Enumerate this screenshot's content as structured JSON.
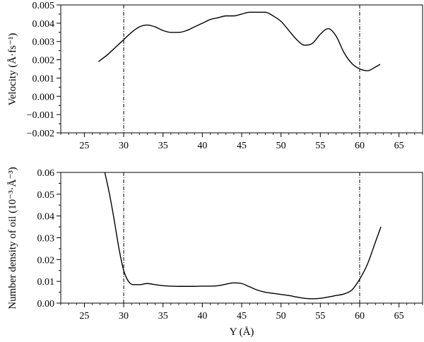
{
  "chart_data": [
    {
      "type": "line",
      "panel": "top",
      "ylabel": "Velocity (Å·fs⁻¹)",
      "xlim": [
        22,
        68
      ],
      "ylim": [
        -0.002,
        0.005
      ],
      "x_ticks": [
        "25",
        "30",
        "35",
        "40",
        "45",
        "50",
        "55",
        "60",
        "65"
      ],
      "y_ticks": [
        "−0.002",
        "−0.001",
        "0.000",
        "0.001",
        "0.002",
        "0.003",
        "0.004",
        "0.005"
      ],
      "reference_lines_x": [
        30,
        60
      ],
      "grid": false,
      "series": [
        {
          "x": [
            26.8,
            28,
            29,
            30,
            31,
            32,
            33,
            34,
            35,
            36,
            37,
            38,
            39,
            40,
            41,
            42,
            43,
            44,
            45,
            46,
            47,
            48,
            49,
            50,
            51,
            52,
            53,
            54,
            55,
            56,
            57,
            58,
            59,
            60,
            61,
            62,
            62.6
          ],
          "y": [
            0.0019,
            0.0023,
            0.0027,
            0.0031,
            0.0035,
            0.0038,
            0.0039,
            0.0038,
            0.0036,
            0.0035,
            0.0035,
            0.0036,
            0.0038,
            0.004,
            0.0042,
            0.0043,
            0.0044,
            0.0044,
            0.0045,
            0.0046,
            0.0046,
            0.0046,
            0.0044,
            0.0041,
            0.0036,
            0.0031,
            0.0028,
            0.0029,
            0.0034,
            0.0037,
            0.0033,
            0.0024,
            0.0018,
            0.0015,
            0.0014,
            0.0016,
            0.00175
          ]
        }
      ]
    },
    {
      "type": "line",
      "panel": "bottom",
      "xlabel": "Y (Å)",
      "ylabel": "Number density of oil (10⁻³·Å⁻³)",
      "xlim": [
        22,
        68
      ],
      "ylim": [
        0,
        0.06
      ],
      "x_ticks": [
        "25",
        "30",
        "35",
        "40",
        "45",
        "50",
        "55",
        "60",
        "65"
      ],
      "y_ticks": [
        "0.00",
        "0.01",
        "0.02",
        "0.03",
        "0.04",
        "0.05",
        "0.06"
      ],
      "reference_lines_x": [
        30,
        60
      ],
      "grid": false,
      "series": [
        {
          "x": [
            27.6,
            28.2,
            28.8,
            29.4,
            30,
            30.6,
            31.2,
            32,
            33,
            34,
            35,
            36,
            37,
            38,
            39,
            40,
            41,
            42,
            43,
            44,
            45,
            46,
            47,
            48,
            49,
            50,
            51,
            52,
            53,
            54,
            55,
            56,
            57,
            58,
            59,
            60,
            61,
            62,
            62.7
          ],
          "y": [
            0.06,
            0.05,
            0.038,
            0.025,
            0.015,
            0.01,
            0.0085,
            0.0085,
            0.009,
            0.0085,
            0.008,
            0.0078,
            0.0077,
            0.0077,
            0.0077,
            0.0078,
            0.0078,
            0.008,
            0.0087,
            0.0093,
            0.009,
            0.0075,
            0.006,
            0.005,
            0.0045,
            0.004,
            0.0035,
            0.0028,
            0.0022,
            0.002,
            0.0022,
            0.0028,
            0.0035,
            0.0042,
            0.006,
            0.011,
            0.018,
            0.028,
            0.035
          ]
        }
      ]
    }
  ]
}
